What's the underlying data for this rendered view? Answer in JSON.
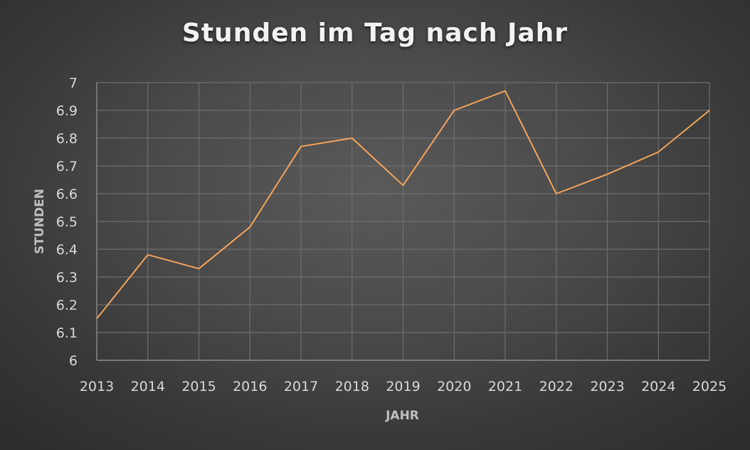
{
  "chart_data": {
    "type": "line",
    "title": "Stunden im Tag nach Jahr",
    "xlabel": "JAHR",
    "ylabel": "STUNDEN",
    "categories": [
      "2013",
      "2014",
      "2015",
      "2016",
      "2017",
      "2018",
      "2019",
      "2020",
      "2021",
      "2022",
      "2023",
      "2024",
      "2025"
    ],
    "series": [
      {
        "values": [
          6.15,
          6.38,
          6.33,
          6.48,
          6.77,
          6.8,
          6.63,
          6.9,
          6.97,
          6.6,
          6.67,
          6.75,
          6.9
        ],
        "color": "#f4a35a"
      }
    ],
    "ylim": [
      6,
      7
    ],
    "yticks": [
      "6",
      "6.1",
      "6.2",
      "6.3",
      "6.4",
      "6.5",
      "6.6",
      "6.7",
      "6.8",
      "6.9",
      "7"
    ],
    "grid": true,
    "legend": "none"
  }
}
